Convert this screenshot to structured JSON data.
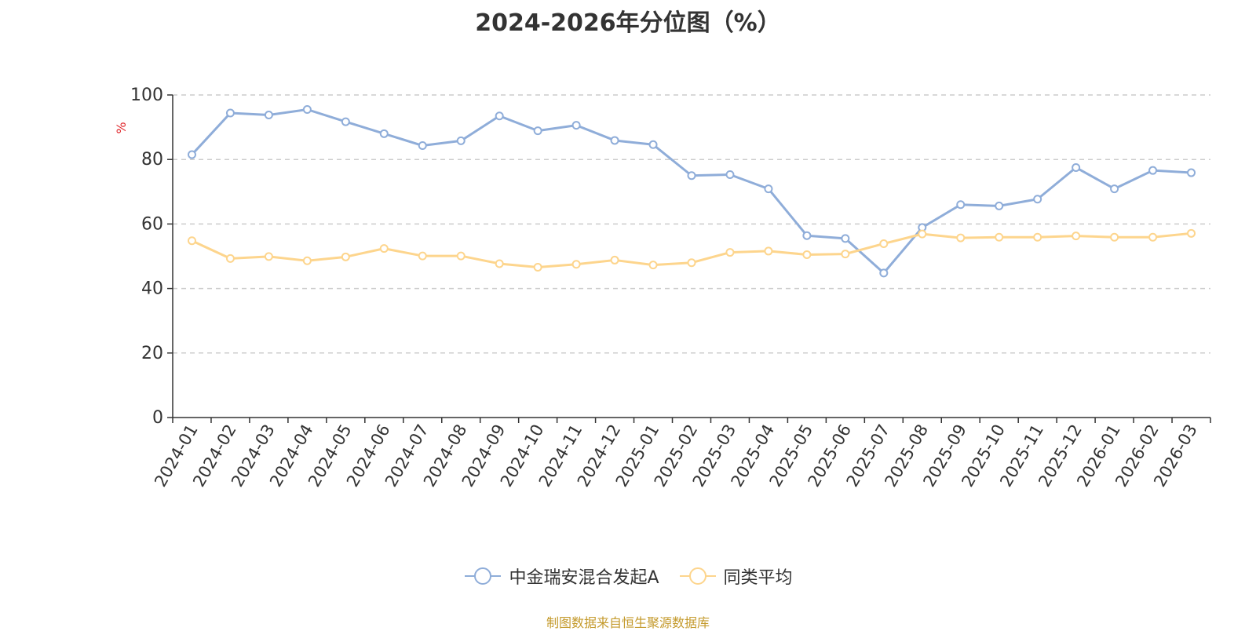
{
  "chart_data": {
    "type": "line",
    "title": "2024-2026年分位图（%）",
    "ylabel": "%",
    "xlabel": "",
    "ylim": [
      0,
      100
    ],
    "yticks": [
      0,
      20,
      40,
      60,
      80,
      100
    ],
    "grid": "horizontal-dashed",
    "legend_position": "bottom-center",
    "categories": [
      "2024-01",
      "2024-02",
      "2024-03",
      "2024-04",
      "2024-05",
      "2024-06",
      "2024-07",
      "2024-08",
      "2024-09",
      "2024-10",
      "2024-11",
      "2024-12",
      "2025-01",
      "2025-02",
      "2025-03",
      "2025-04",
      "2025-05",
      "2025-06",
      "2025-07",
      "2025-08",
      "2025-09",
      "2025-10",
      "2025-11",
      "2025-12",
      "2026-01",
      "2026-02",
      "2026-03"
    ],
    "series": [
      {
        "name": "中金瑞安混合发起A",
        "color": "#8fadd9",
        "values": [
          81.5,
          94.4,
          93.8,
          95.5,
          91.7,
          88.0,
          84.3,
          85.8,
          93.5,
          88.9,
          90.6,
          85.9,
          84.6,
          75.0,
          75.3,
          70.9,
          56.4,
          55.5,
          44.8,
          58.9,
          66.0,
          65.6,
          67.7,
          77.5,
          70.9,
          76.6,
          75.9
        ]
      },
      {
        "name": "同类平均",
        "color": "#fdd58d",
        "values": [
          54.8,
          49.3,
          49.9,
          48.6,
          49.8,
          52.4,
          50.1,
          50.1,
          47.7,
          46.6,
          47.5,
          48.8,
          47.3,
          48.0,
          51.2,
          51.6,
          50.5,
          50.7,
          53.9,
          56.9,
          55.7,
          55.9,
          55.9,
          56.3,
          55.9,
          55.9,
          57.1
        ]
      }
    ]
  },
  "source_note": "制图数据来自恒生聚源数据库"
}
